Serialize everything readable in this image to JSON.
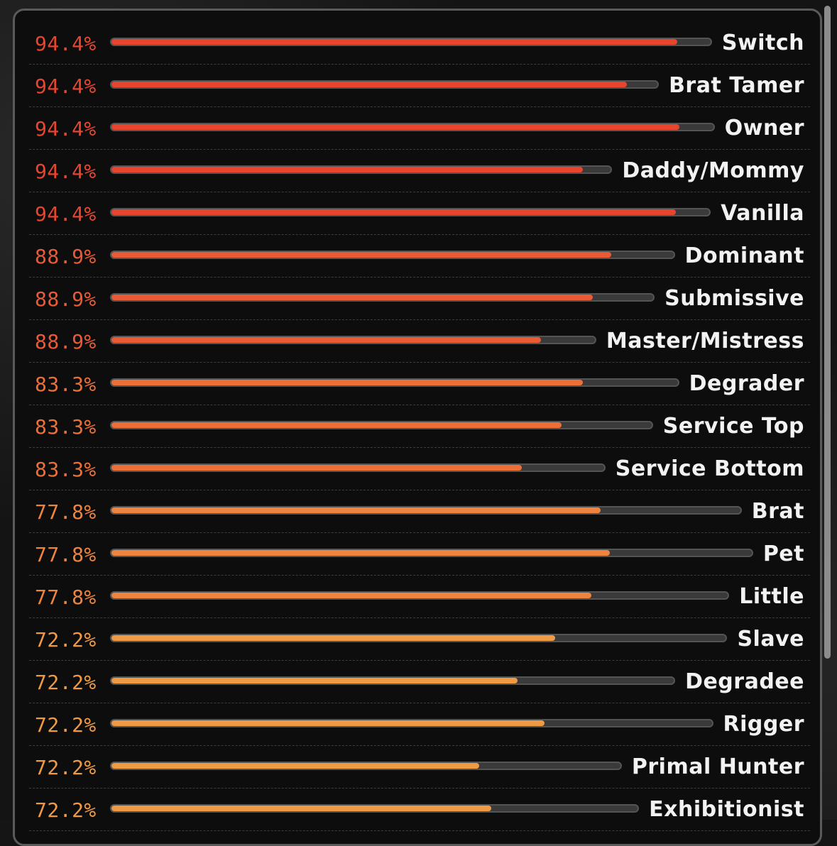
{
  "results": [
    {
      "percent": "94.4%",
      "label": "Switch",
      "fill": 0.944,
      "color": "#e8452f"
    },
    {
      "percent": "94.4%",
      "label": "Brat Tamer",
      "fill": 0.944,
      "color": "#e8452f"
    },
    {
      "percent": "94.4%",
      "label": "Owner",
      "fill": 0.944,
      "color": "#e8452f"
    },
    {
      "percent": "94.4%",
      "label": "Daddy/Mommy",
      "fill": 0.944,
      "color": "#e8452f"
    },
    {
      "percent": "94.4%",
      "label": "Vanilla",
      "fill": 0.944,
      "color": "#e8452f"
    },
    {
      "percent": "88.9%",
      "label": "Dominant",
      "fill": 0.889,
      "color": "#ea5a34"
    },
    {
      "percent": "88.9%",
      "label": "Submissive",
      "fill": 0.889,
      "color": "#ea5a34"
    },
    {
      "percent": "88.9%",
      "label": "Master/Mistress",
      "fill": 0.889,
      "color": "#ea5a34"
    },
    {
      "percent": "83.3%",
      "label": "Degrader",
      "fill": 0.833,
      "color": "#ec6f38"
    },
    {
      "percent": "83.3%",
      "label": "Service Top",
      "fill": 0.833,
      "color": "#ec6f38"
    },
    {
      "percent": "83.3%",
      "label": "Service Bottom",
      "fill": 0.833,
      "color": "#ec6f38"
    },
    {
      "percent": "77.8%",
      "label": "Brat",
      "fill": 0.778,
      "color": "#ee843d"
    },
    {
      "percent": "77.8%",
      "label": "Pet",
      "fill": 0.778,
      "color": "#ee843d"
    },
    {
      "percent": "77.8%",
      "label": "Little",
      "fill": 0.778,
      "color": "#ee843d"
    },
    {
      "percent": "72.2%",
      "label": "Slave",
      "fill": 0.722,
      "color": "#f09a44"
    },
    {
      "percent": "72.2%",
      "label": "Degradee",
      "fill": 0.722,
      "color": "#f09a44"
    },
    {
      "percent": "72.2%",
      "label": "Rigger",
      "fill": 0.722,
      "color": "#f09a44"
    },
    {
      "percent": "72.2%",
      "label": "Primal Hunter",
      "fill": 0.722,
      "color": "#f09a44"
    },
    {
      "percent": "72.2%",
      "label": "Exhibitionist",
      "fill": 0.722,
      "color": "#f09a44"
    }
  ]
}
